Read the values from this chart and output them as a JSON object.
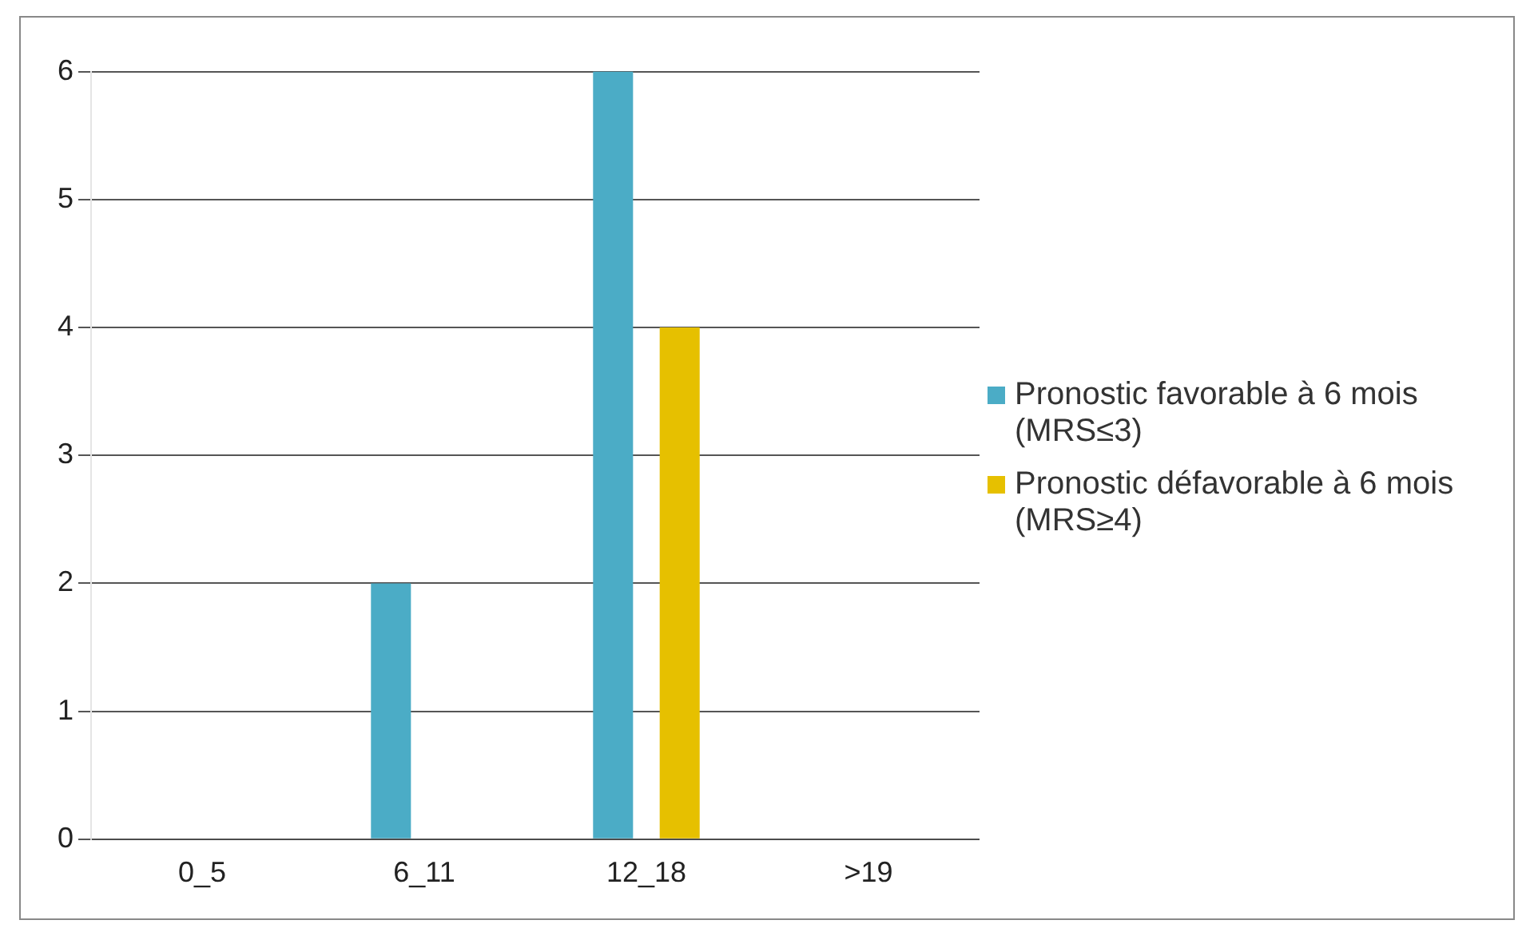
{
  "chart_data": {
    "type": "bar",
    "categories": [
      "0_5",
      "6_11",
      "12_18",
      ">19"
    ],
    "series": [
      {
        "name": "Pronostic favorable à 6 mois (MRS≤3)",
        "color": "#4bacc6",
        "values": [
          0,
          2,
          6,
          0
        ]
      },
      {
        "name": "Pronostic défavorable à 6 mois (MRS≥4)",
        "color": "#e6c000",
        "values": [
          0,
          0,
          4,
          0
        ]
      }
    ],
    "ylim": [
      0,
      6
    ],
    "yticks": [
      0,
      1,
      2,
      3,
      4,
      5,
      6
    ],
    "grid": "y",
    "legend": "right"
  }
}
